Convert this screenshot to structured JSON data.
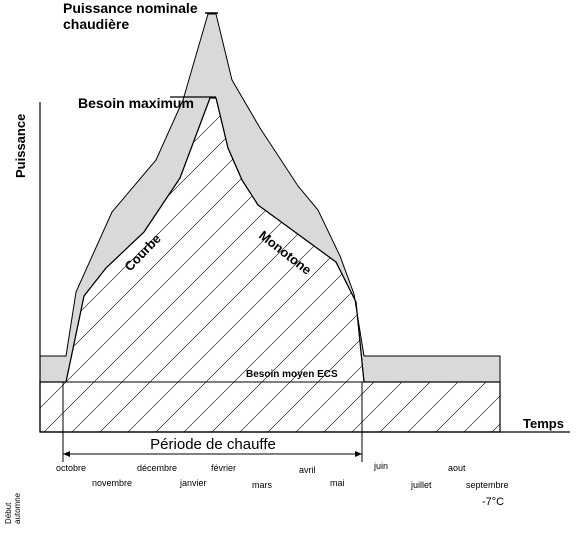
{
  "labels": {
    "nominal_line1": "Puissance nominale",
    "nominal_line2": "chaudière",
    "besoin_max": "Besoin maximum",
    "courbe": "Courbe",
    "monotone": "Monotone",
    "besoin_ecs": "Besoin moyen ECS",
    "y_axis": "Puissance",
    "x_axis": "Temps",
    "periode": "Période de chauffe",
    "debut_line1": "Début",
    "debut_line2": "automne",
    "temperature": "-7°C"
  },
  "months": [
    "octobre",
    "novembre",
    "décembre",
    "janvier",
    "février",
    "mars",
    "avril",
    "mai",
    "juin",
    "juillet",
    "aout",
    "septembre"
  ],
  "colors": {
    "fill": "#d9d9d9",
    "line": "#000000"
  }
}
